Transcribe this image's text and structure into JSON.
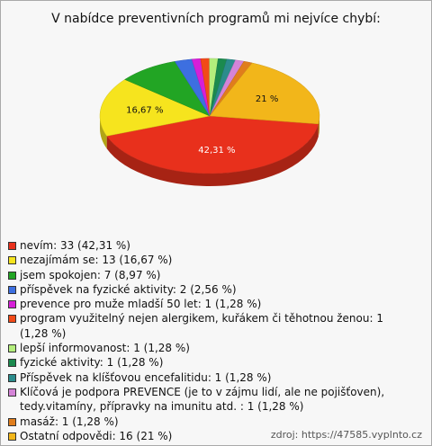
{
  "chart_data": {
    "type": "pie",
    "title": "V nabídce preventivních programů mi nejvíce chybí:",
    "categories": [
      "nevím: 33 (42,31 %)",
      "nezajímám se: 13 (16,67 %)",
      "jsem spokojen: 7 (8,97 %)",
      "příspěvek na fyzické aktivity: 2 (2,56 %)",
      "prevence pro muže mladší 50 let: 1 (1,28 %)",
      "program využitelný nejen alergikem, kuřákem či těhotnou ženou: 1 (1,28 %)",
      "lepší informovanost: 1 (1,28 %)",
      "fyzické aktivity: 1 (1,28 %)",
      "Příspěvek na klíšťovou encefalitidu: 1 (1,28 %)",
      "Klíčová je podpora PREVENCE (je to v zájmu lidí, ale ne pojišťoven), tedy.vitamíny, přípravky na imunitu atd. : 1 (1,28 %)",
      "masáž: 1 (1,28 %)",
      "Ostatní odpovědi: 16 (21 %)"
    ],
    "values": [
      42.31,
      16.67,
      8.97,
      2.56,
      1.28,
      1.28,
      1.28,
      1.28,
      1.28,
      1.28,
      1.28,
      21
    ],
    "value_labels": [
      "42,31 %",
      "16,67 %",
      null,
      null,
      null,
      null,
      null,
      null,
      null,
      null,
      null,
      "21 %"
    ],
    "colors": [
      "#e8301c",
      "#f6e41e",
      "#22a524",
      "#3d6fe0",
      "#d61fd8",
      "#f24a18",
      "#b4ee7c",
      "#1b8a4e",
      "#2b8c8c",
      "#d584d8",
      "#e07d1c",
      "#f2b61a"
    ],
    "source": "zdroj: https://47585.vyplnto.cz"
  }
}
